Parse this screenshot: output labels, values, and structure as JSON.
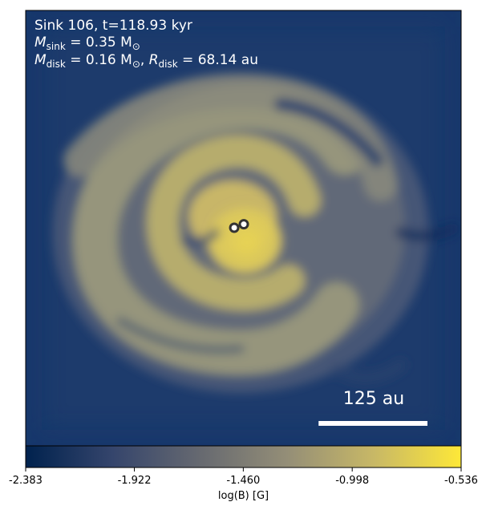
{
  "chart_data": {
    "type": "heatmap",
    "header": {
      "line1": "Sink 106, t=118.93 kyr",
      "line2_label": "M",
      "line2_sub": "sink",
      "line2_rest": " = 0.35 M",
      "line2_sym": "⊙",
      "line3_label": "M",
      "line3_sub": "disk",
      "line3_mid": " = 0.16 M",
      "line3_sym": "⊙",
      "line3_sep": ", ",
      "line3_r": "R",
      "line3_rsub": "disk",
      "line3_rest": " = 68.14 au"
    },
    "scale_bar": {
      "label": "125 au",
      "length_au": 125
    },
    "sinks": [
      {
        "name": "sink-marker-1",
        "x_au": -11,
        "y_au": 0
      },
      {
        "name": "sink-marker-2",
        "x_au": 0,
        "y_au": -4
      }
    ],
    "colorbar": {
      "label": "log(B) [G]",
      "range": [
        -2.383,
        -0.536
      ],
      "ticks": [
        {
          "value": -2.383,
          "label": "-2.383"
        },
        {
          "value": -1.922,
          "label": "-1.922"
        },
        {
          "value": -1.46,
          "label": "-1.460"
        },
        {
          "value": -0.998,
          "label": "-0.998"
        },
        {
          "value": -0.536,
          "label": "-0.536"
        }
      ],
      "colormap": "cividis",
      "colors": [
        "#00224e",
        "#35456c",
        "#666970",
        "#948e77",
        "#c8b866",
        "#fee838"
      ]
    },
    "colors": {
      "text": "#ffffff",
      "scale_bar": "#ffffff",
      "sink_fill": "#ffffff",
      "sink_edge": "#333333"
    }
  }
}
